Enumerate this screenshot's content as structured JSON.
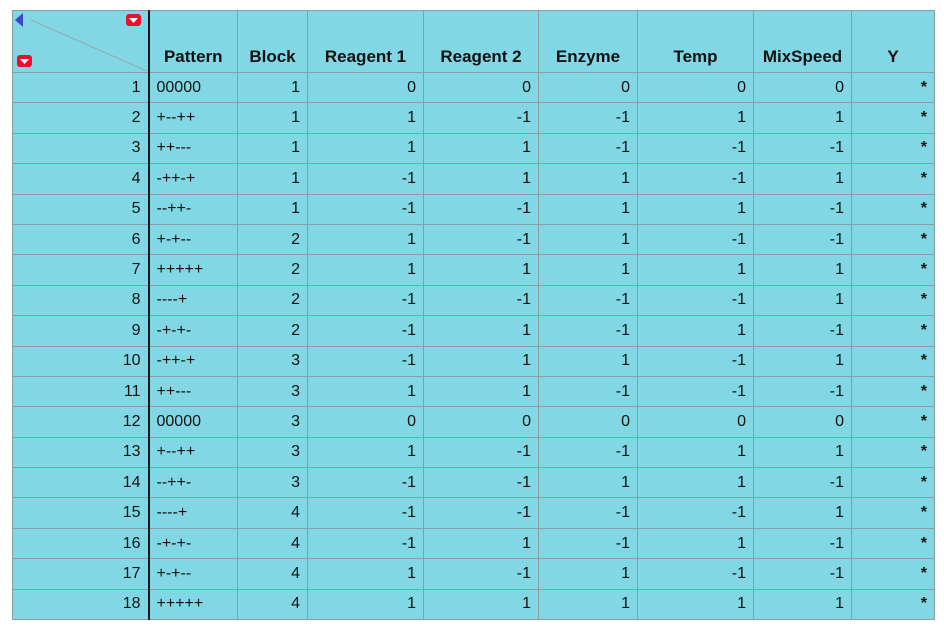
{
  "table": {
    "columns": [
      "Pattern",
      "Block",
      "Reagent 1",
      "Reagent 2",
      "Enzyme",
      "Temp",
      "MixSpeed",
      "Y"
    ],
    "rows": [
      [
        "1",
        "00000",
        "1",
        "0",
        "0",
        "0",
        "0",
        "0",
        "*"
      ],
      [
        "2",
        "+--++",
        "1",
        "1",
        "-1",
        "-1",
        "1",
        "1",
        "*"
      ],
      [
        "3",
        "++---",
        "1",
        "1",
        "1",
        "-1",
        "-1",
        "-1",
        "*"
      ],
      [
        "4",
        "-++-+",
        "1",
        "-1",
        "1",
        "1",
        "-1",
        "1",
        "*"
      ],
      [
        "5",
        "--++-",
        "1",
        "-1",
        "-1",
        "1",
        "1",
        "-1",
        "*"
      ],
      [
        "6",
        "+-+--",
        "2",
        "1",
        "-1",
        "1",
        "-1",
        "-1",
        "*"
      ],
      [
        "7",
        "+++++",
        "2",
        "1",
        "1",
        "1",
        "1",
        "1",
        "*"
      ],
      [
        "8",
        "----+",
        "2",
        "-1",
        "-1",
        "-1",
        "-1",
        "1",
        "*"
      ],
      [
        "9",
        "-+-+-",
        "2",
        "-1",
        "1",
        "-1",
        "1",
        "-1",
        "*"
      ],
      [
        "10",
        "-++-+",
        "3",
        "-1",
        "1",
        "1",
        "-1",
        "1",
        "*"
      ],
      [
        "11",
        "++---",
        "3",
        "1",
        "1",
        "-1",
        "-1",
        "-1",
        "*"
      ],
      [
        "12",
        "00000",
        "3",
        "0",
        "0",
        "0",
        "0",
        "0",
        "*"
      ],
      [
        "13",
        "+--++",
        "3",
        "1",
        "-1",
        "-1",
        "1",
        "1",
        "*"
      ],
      [
        "14",
        "--++-",
        "3",
        "-1",
        "-1",
        "1",
        "1",
        "-1",
        "*"
      ],
      [
        "15",
        "----+",
        "4",
        "-1",
        "-1",
        "-1",
        "-1",
        "1",
        "*"
      ],
      [
        "16",
        "-+-+-",
        "4",
        "-1",
        "1",
        "-1",
        "1",
        "-1",
        "*"
      ],
      [
        "17",
        "+-+--",
        "4",
        "1",
        "-1",
        "1",
        "-1",
        "-1",
        "*"
      ],
      [
        "18",
        "+++++",
        "4",
        "1",
        "1",
        "1",
        "1",
        "1",
        "*"
      ]
    ]
  },
  "corner": {
    "collapse_icon": "blue-triangle-left-icon",
    "columns_menu_icon": "red-down-arrow-icon",
    "rows_menu_icon": "red-down-arrow-icon"
  },
  "colors": {
    "cell_background": "#81d8e4",
    "grid_line": "#8a9da3",
    "row_header_divider": "#1a1a1a",
    "menu_icon": "#e8112d",
    "collapse_icon": "#3b48c8"
  }
}
